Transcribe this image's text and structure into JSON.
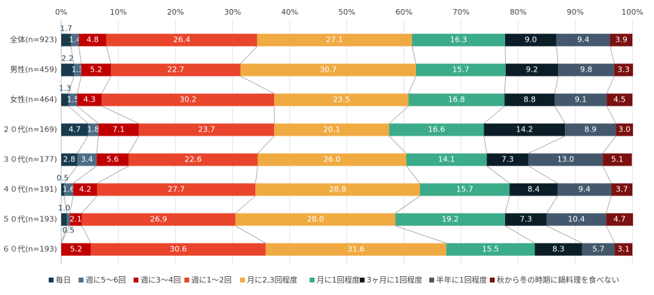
{
  "chart_data": {
    "type": "stacked-bar-horizontal",
    "categories": [
      "全体(n=923)",
      "男性(n=459)",
      "女性(n=464)",
      "２０代(n=169)",
      "３０代(n=177)",
      "４０代(n=191)",
      "５０代(n=193)",
      "６０代(n=193)"
    ],
    "xlim": [
      0,
      100
    ],
    "xticks": [
      {
        "value": 0,
        "label": "0%"
      },
      {
        "value": 10,
        "label": "10%"
      },
      {
        "value": 20,
        "label": "20%"
      },
      {
        "value": 30,
        "label": "30%"
      },
      {
        "value": 40,
        "label": "40%"
      },
      {
        "value": 50,
        "label": "50%"
      },
      {
        "value": 60,
        "label": "60%"
      },
      {
        "value": 70,
        "label": "70%"
      },
      {
        "value": 80,
        "label": "80%"
      },
      {
        "value": 90,
        "label": "90%"
      },
      {
        "value": 100,
        "label": "100%"
      }
    ],
    "grid": true,
    "legend": "bottom",
    "series": [
      {
        "name": "毎日",
        "color": "#173a4c",
        "values": [
          1.7,
          2.2,
          1.3,
          4.7,
          2.8,
          0.5,
          1.0,
          0
        ],
        "value_labels": [
          "1.7",
          "2.2",
          "1.3",
          "4.7",
          "2.8",
          "0.5",
          "1.0",
          null
        ]
      },
      {
        "name": "週に5～6回",
        "color": "#4d6c86",
        "values": [
          1.4,
          1.3,
          1.5,
          1.8,
          3.4,
          1.6,
          0.5,
          0
        ],
        "value_labels": [
          "1.4",
          "1.3",
          "1.5",
          "1.8",
          "3.4",
          "1.6",
          "0.5",
          null
        ]
      },
      {
        "name": "週に3～4回",
        "color": "#c00000",
        "values": [
          4.8,
          5.2,
          4.3,
          7.1,
          5.6,
          4.2,
          2.1,
          5.2
        ],
        "value_labels": [
          "4.8",
          "5.2",
          "4.3",
          "7.1",
          "5.6",
          "4.2",
          "2.1",
          "5.2"
        ]
      },
      {
        "name": "週に1～2回",
        "color": "#e8452c",
        "values": [
          26.4,
          22.7,
          30.2,
          23.7,
          22.6,
          27.7,
          26.9,
          30.6
        ],
        "value_labels": [
          "26.4",
          "22.7",
          "30.2",
          "23.7",
          "22.6",
          "27.7",
          "26.9",
          "30.6"
        ]
      },
      {
        "name": "月に2,3回程度",
        "color": "#f0aa42",
        "values": [
          27.1,
          30.7,
          23.5,
          20.1,
          26.0,
          28.8,
          28.0,
          31.6
        ],
        "value_labels": [
          "27.1",
          "30.7",
          "23.5",
          "20.1",
          "26.0",
          "28.8",
          "28.0",
          "31.6"
        ]
      },
      {
        "name": "月に1回程度",
        "color": "#3bab89",
        "values": [
          16.3,
          15.7,
          16.8,
          16.6,
          14.1,
          15.7,
          19.2,
          15.5
        ],
        "value_labels": [
          "16.3",
          "15.7",
          "16.8",
          "16.6",
          "14.1",
          "15.7",
          "19.2",
          "15.5"
        ]
      },
      {
        "name": "3ヶ月に1回程度",
        "color": "#0b1e28",
        "values": [
          9.0,
          9.2,
          8.8,
          14.2,
          7.3,
          8.4,
          7.3,
          8.3
        ],
        "value_labels": [
          "9.0",
          "9.2",
          "8.8",
          "14.2",
          "7.3",
          "8.4",
          "7.3",
          "8.3"
        ]
      },
      {
        "name": "半年に1回程度",
        "color": "#44586d",
        "values": [
          9.4,
          9.8,
          9.1,
          8.9,
          13.0,
          9.4,
          10.4,
          5.7
        ],
        "value_labels": [
          "9.4",
          "9.8",
          "9.1",
          "8.9",
          "13.0",
          "9.4",
          "10.4",
          "5.7"
        ]
      },
      {
        "name": "秋から冬の時期に鍋料理を食べない",
        "color": "#7b1010",
        "values": [
          3.9,
          3.3,
          4.5,
          3.0,
          5.1,
          3.7,
          4.7,
          3.1
        ],
        "value_labels": [
          "3.9",
          "3.3",
          "4.5",
          "3.0",
          "5.1",
          "3.7",
          "4.7",
          "3.1"
        ]
      }
    ]
  }
}
